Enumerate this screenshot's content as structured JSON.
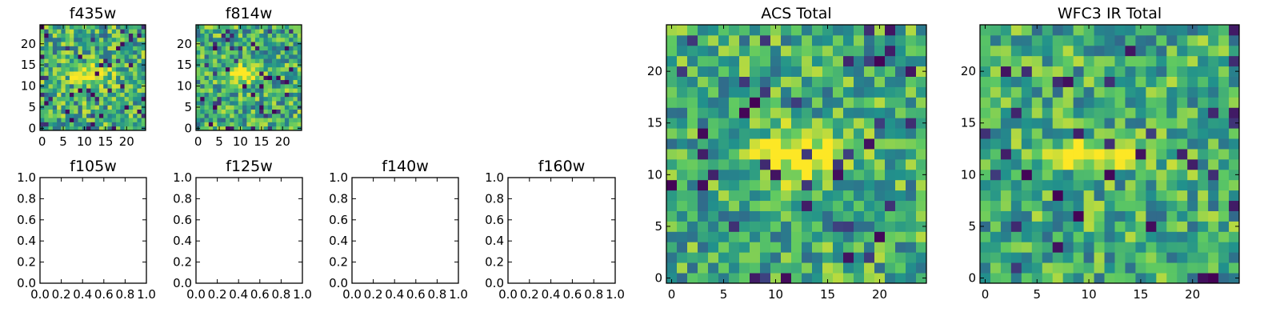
{
  "figure": {
    "colormap": [
      "#440154",
      "#3b528b",
      "#21918c",
      "#5ec962",
      "#fde725"
    ]
  },
  "chart_data": [
    {
      "id": "f435w",
      "type": "heatmap",
      "title": "f435w",
      "image_size": 25,
      "xlim": [
        -0.5,
        24.5
      ],
      "ylim": [
        -0.5,
        24.5
      ],
      "xticks": [
        0,
        5,
        10,
        15,
        20
      ],
      "yticks": [
        0,
        5,
        10,
        15,
        20
      ],
      "xlabel": "",
      "ylabel": "",
      "seed": 11,
      "peak": {
        "x": 12,
        "y": 13,
        "sx": 3.2,
        "sy": 1.6,
        "amp": 0.45
      },
      "noise_level": 0.62,
      "dark_fraction": 0.07
    },
    {
      "id": "f814w",
      "type": "heatmap",
      "title": "f814w",
      "image_size": 25,
      "xlim": [
        -0.5,
        24.5
      ],
      "ylim": [
        -0.5,
        24.5
      ],
      "xticks": [
        0,
        5,
        10,
        15,
        20
      ],
      "yticks": [
        0,
        5,
        10,
        15,
        20
      ],
      "xlabel": "",
      "ylabel": "",
      "seed": 29,
      "peak": {
        "x": 11,
        "y": 13,
        "sx": 3.0,
        "sy": 1.4,
        "amp": 0.55
      },
      "noise_level": 0.6,
      "dark_fraction": 0.06
    },
    {
      "id": "f105w",
      "type": "empty",
      "title": "f105w",
      "xlim": [
        0.0,
        1.0
      ],
      "ylim": [
        0.0,
        1.0
      ],
      "xticks": [
        "0.0",
        "0.2",
        "0.4",
        "0.6",
        "0.8",
        "1.0"
      ],
      "yticks": [
        "0.0",
        "0.2",
        "0.4",
        "0.6",
        "0.8",
        "1.0"
      ]
    },
    {
      "id": "f125w",
      "type": "empty",
      "title": "f125w",
      "xlim": [
        0.0,
        1.0
      ],
      "ylim": [
        0.0,
        1.0
      ],
      "xticks": [
        "0.0",
        "0.2",
        "0.4",
        "0.6",
        "0.8",
        "1.0"
      ],
      "yticks": [
        "0.0",
        "0.2",
        "0.4",
        "0.6",
        "0.8",
        "1.0"
      ]
    },
    {
      "id": "f140w",
      "type": "empty",
      "title": "f140w",
      "xlim": [
        0.0,
        1.0
      ],
      "ylim": [
        0.0,
        1.0
      ],
      "xticks": [
        "0.0",
        "0.2",
        "0.4",
        "0.6",
        "0.8",
        "1.0"
      ],
      "yticks": [
        "0.0",
        "0.2",
        "0.4",
        "0.6",
        "0.8",
        "1.0"
      ]
    },
    {
      "id": "f160w",
      "type": "empty",
      "title": "f160w",
      "xlim": [
        0.0,
        1.0
      ],
      "ylim": [
        0.0,
        1.0
      ],
      "xticks": [
        "0.0",
        "0.2",
        "0.4",
        "0.6",
        "0.8",
        "1.0"
      ],
      "yticks": [
        "0.0",
        "0.2",
        "0.4",
        "0.6",
        "0.8",
        "1.0"
      ]
    },
    {
      "id": "acs-total",
      "type": "heatmap",
      "title": "ACS Total",
      "image_size": 25,
      "xlim": [
        -0.5,
        24.5
      ],
      "ylim": [
        -0.5,
        24.5
      ],
      "xticks": [
        0,
        5,
        10,
        15,
        20
      ],
      "yticks": [
        0,
        5,
        10,
        15,
        20
      ],
      "xlabel": "",
      "ylabel": "",
      "seed": 47,
      "peak": {
        "x": 12,
        "y": 12,
        "sx": 3.0,
        "sy": 1.6,
        "amp": 0.5
      },
      "noise_level": 0.55,
      "dark_fraction": 0.05
    },
    {
      "id": "wfc3-ir-total",
      "type": "heatmap",
      "title": "WFC3 IR Total",
      "image_size": 25,
      "xlim": [
        -0.5,
        24.5
      ],
      "ylim": [
        -0.5,
        24.5
      ],
      "xticks": [
        0,
        5,
        10,
        15,
        20
      ],
      "yticks": [
        0,
        5,
        10,
        15,
        20
      ],
      "xlabel": "",
      "ylabel": "",
      "seed": 83,
      "peak": {
        "x": 12,
        "y": 12,
        "sx": 3.5,
        "sy": 0.9,
        "amp": 0.55
      },
      "noise_level": 0.55,
      "dark_fraction": 0.06
    }
  ]
}
